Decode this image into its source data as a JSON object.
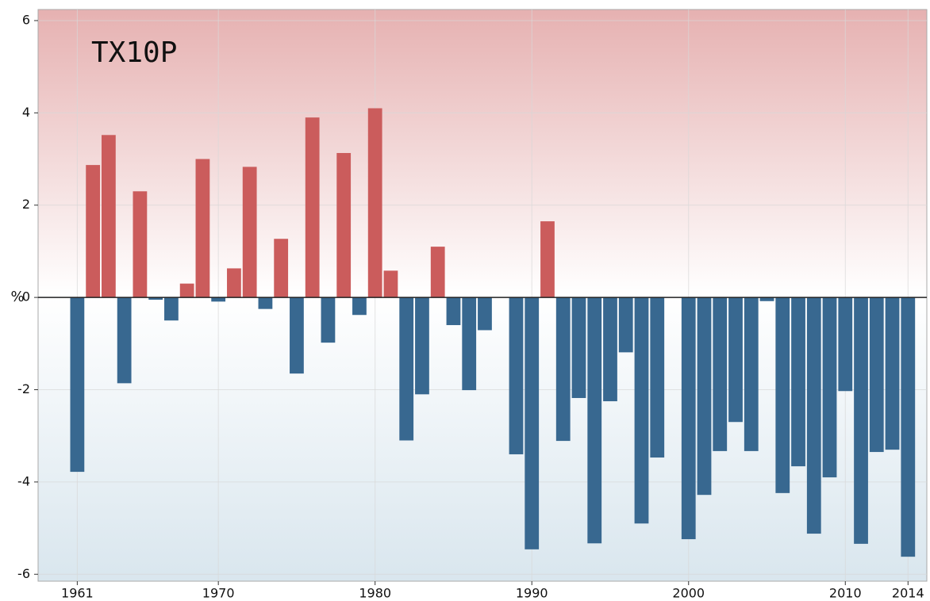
{
  "chart_data": {
    "type": "bar",
    "title": "TX10P",
    "ylabel": "%",
    "x": [
      1961,
      1962,
      1963,
      1964,
      1965,
      1966,
      1967,
      1968,
      1969,
      1970,
      1971,
      1972,
      1973,
      1974,
      1975,
      1976,
      1977,
      1978,
      1979,
      1980,
      1981,
      1982,
      1983,
      1984,
      1985,
      1986,
      1987,
      1988,
      1989,
      1990,
      1991,
      1992,
      1993,
      1994,
      1995,
      1996,
      1997,
      1998,
      1999,
      2000,
      2001,
      2002,
      2003,
      2004,
      2005,
      2006,
      2007,
      2008,
      2009,
      2010,
      2011,
      2012,
      2013,
      2014
    ],
    "values": [
      -3.78,
      2.87,
      3.52,
      -1.86,
      2.3,
      -0.05,
      -0.5,
      0.3,
      3.0,
      -0.09,
      0.63,
      2.83,
      -0.25,
      1.27,
      -1.65,
      3.9,
      -0.98,
      3.13,
      -0.38,
      4.1,
      0.58,
      -3.1,
      -2.1,
      1.1,
      -0.6,
      -2.01,
      -0.71,
      0,
      -3.4,
      -5.46,
      1.65,
      -3.11,
      -2.18,
      -5.33,
      -2.25,
      -1.19,
      -4.9,
      -3.47,
      0,
      -5.24,
      -4.28,
      -3.33,
      -2.7,
      -3.33,
      -0.08,
      -4.24,
      -3.66,
      -5.12,
      -3.9,
      -2.03,
      -5.34,
      -3.35,
      -3.3,
      -5.62
    ],
    "positive_color": "#cb5c5c",
    "negative_color": "#386890",
    "xlim": [
      1958.5,
      2015.2
    ],
    "xticks": [
      1961,
      1970,
      1980,
      1990,
      2000,
      2010,
      2014
    ],
    "ylim": [
      -6.15,
      6.24
    ],
    "yticks": [
      -6,
      -4,
      -2,
      0,
      2,
      4,
      6
    ],
    "grid": true
  }
}
